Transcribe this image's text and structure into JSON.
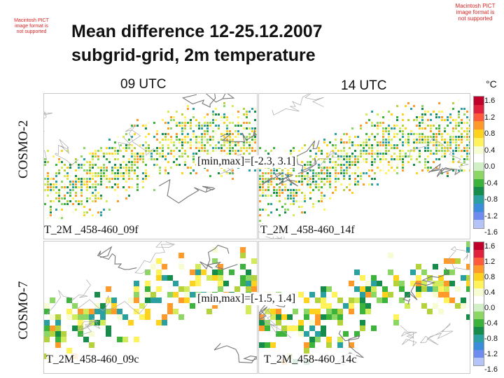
{
  "unsupported_notice_left": "Macintosh PICT image format is not supported",
  "unsupported_notice_right": "Macintosh PICT image format is not supported",
  "title_line1": "Mean difference 12-25.12.2007",
  "title_line2": "subgrid-grid, 2m temperature",
  "col_labels": [
    "09 UTC",
    "14 UTC"
  ],
  "row_labels": [
    "COSMO-2",
    "COSMO-7"
  ],
  "unit": "°C",
  "rows": [
    {
      "minmax": "[min,max]=[-2.3, 3.1]",
      "panel_labels": [
        "T_2M _458-460_09f",
        "T_2M _458-460_14f"
      ]
    },
    {
      "minmax": "[min,max]=[-1.5, 1.4]",
      "panel_labels": [
        "T_2M_458-460_09c",
        "T_2M_458-460_14c"
      ]
    }
  ],
  "colorbar": {
    "ticks": [
      "1.6",
      "1.2",
      "0.8",
      "0.4",
      "0.0",
      "-0.4",
      "-0.8",
      "-1.2",
      "-1.6"
    ],
    "colors": [
      "#c0002a",
      "#e0203c",
      "#ff5a3c",
      "#ff9a2a",
      "#ffd21e",
      "#fff25a",
      "#f8fcd2",
      "#ffffff",
      "#d2f0c8",
      "#8cd764",
      "#3cb43c",
      "#168c4a",
      "#2aa0a0",
      "#3c8cdc",
      "#6e8cf0",
      "#b4c3f8"
    ]
  }
}
